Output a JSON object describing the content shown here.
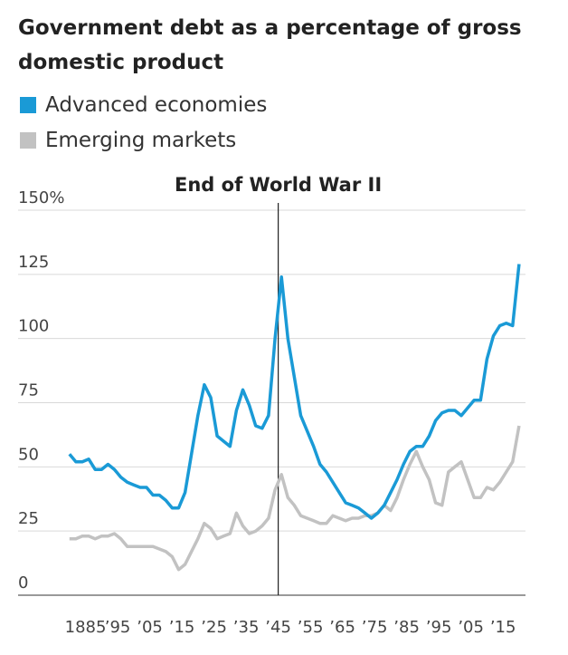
{
  "chart_data": {
    "type": "line",
    "title": "Government debt as a percentage of gross domestic product",
    "annotation": {
      "text": "End of World War II",
      "x": 1945
    },
    "x": [
      1880,
      1882,
      1884,
      1886,
      1888,
      1890,
      1892,
      1894,
      1896,
      1898,
      1900,
      1902,
      1904,
      1906,
      1908,
      1910,
      1912,
      1914,
      1916,
      1918,
      1920,
      1922,
      1924,
      1926,
      1928,
      1930,
      1932,
      1934,
      1936,
      1938,
      1940,
      1942,
      1944,
      1946,
      1948,
      1950,
      1952,
      1954,
      1956,
      1958,
      1960,
      1962,
      1964,
      1966,
      1968,
      1970,
      1972,
      1974,
      1976,
      1978,
      1980,
      1982,
      1984,
      1986,
      1988,
      1990,
      1992,
      1994,
      1996,
      1998,
      2000,
      2002,
      2004,
      2006,
      2008,
      2010,
      2012,
      2014,
      2016,
      2018,
      2020
    ],
    "series": [
      {
        "name": "Advanced economies",
        "color": "#1a9ad6",
        "values": [
          55,
          52,
          52,
          53,
          49,
          49,
          51,
          49,
          46,
          44,
          43,
          42,
          42,
          39,
          39,
          37,
          34,
          34,
          40,
          55,
          70,
          82,
          77,
          62,
          60,
          58,
          72,
          80,
          74,
          66,
          65,
          70,
          100,
          124,
          100,
          85,
          70,
          64,
          58,
          51,
          48,
          44,
          40,
          36,
          35,
          34,
          32,
          30,
          32,
          35,
          40,
          45,
          51,
          56,
          58,
          58,
          62,
          68,
          71,
          72,
          72,
          70,
          73,
          76,
          76,
          92,
          101,
          105,
          106,
          105,
          129
        ]
      },
      {
        "name": "Emerging markets",
        "color": "#c2c2c2",
        "values": [
          22,
          22,
          23,
          23,
          22,
          23,
          23,
          24,
          22,
          19,
          19,
          19,
          19,
          19,
          18,
          17,
          15,
          10,
          12,
          17,
          22,
          28,
          26,
          22,
          23,
          24,
          32,
          27,
          24,
          25,
          27,
          30,
          41,
          47,
          38,
          35,
          31,
          30,
          29,
          28,
          28,
          31,
          30,
          29,
          30,
          30,
          31,
          31,
          32,
          35,
          33,
          38,
          45,
          51,
          56,
          50,
          45,
          36,
          35,
          48,
          50,
          52,
          45,
          38,
          38,
          42,
          41,
          44,
          48,
          52,
          66
        ]
      }
    ],
    "xlim": [
      1864,
      2022
    ],
    "xticks": [
      {
        "value": 1885,
        "label": "1885"
      },
      {
        "value": 1895,
        "label": "’95"
      },
      {
        "value": 1905,
        "label": "’05"
      },
      {
        "value": 1915,
        "label": "’15"
      },
      {
        "value": 1925,
        "label": "’25"
      },
      {
        "value": 1935,
        "label": "’35"
      },
      {
        "value": 1945,
        "label": "’45"
      },
      {
        "value": 1955,
        "label": "’55"
      },
      {
        "value": 1965,
        "label": "’65"
      },
      {
        "value": 1975,
        "label": "’75"
      },
      {
        "value": 1985,
        "label": "’85"
      },
      {
        "value": 1995,
        "label": "’95"
      },
      {
        "value": 2005,
        "label": "’05"
      },
      {
        "value": 2015,
        "label": "’15"
      }
    ],
    "ylim": [
      0,
      150
    ],
    "yticks": [
      0,
      25,
      50,
      75,
      100,
      125,
      {
        "value": 150,
        "label": "150%"
      }
    ],
    "grid": true
  }
}
